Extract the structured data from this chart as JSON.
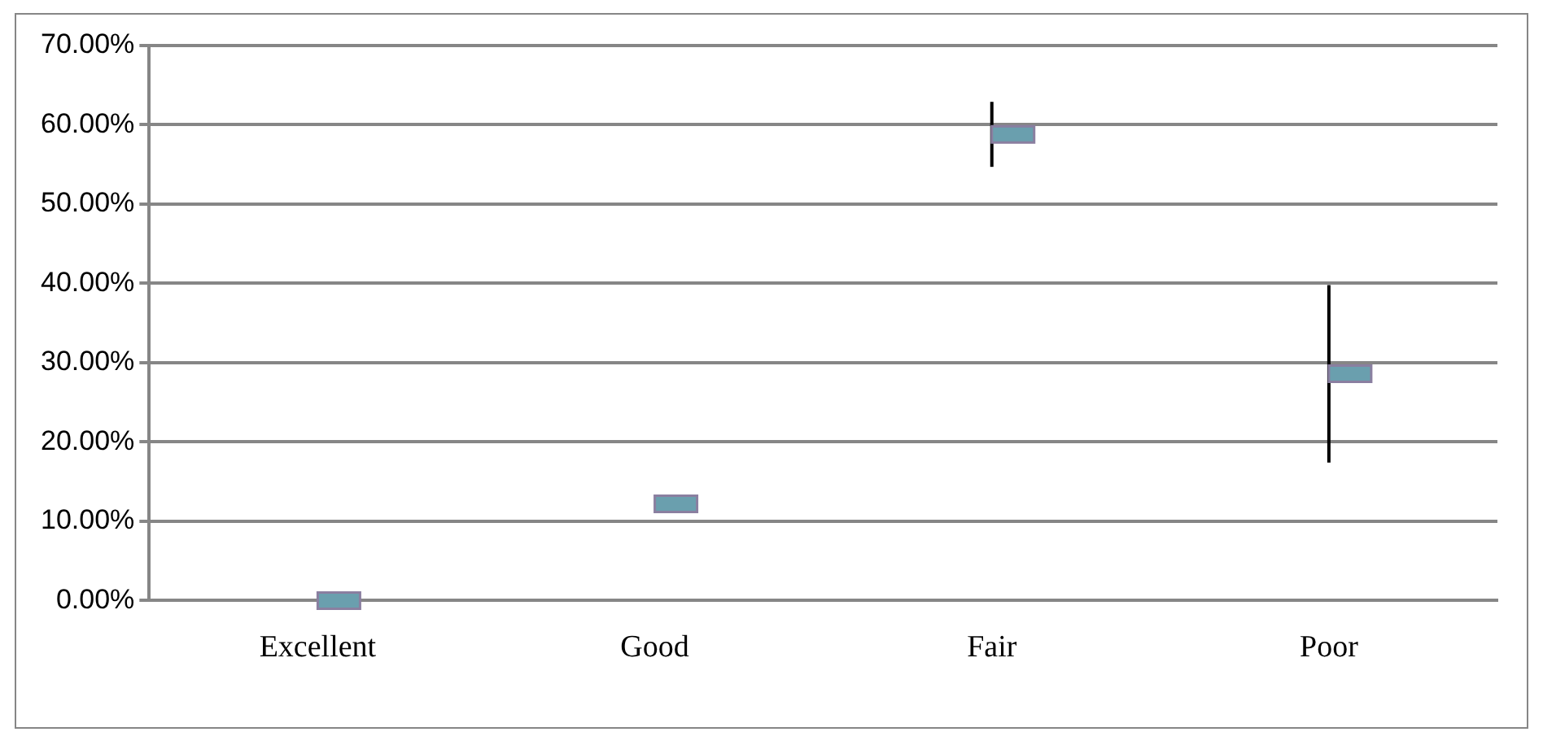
{
  "chart_data": {
    "type": "scatter",
    "categories": [
      "Excellent",
      "Good",
      "Fair",
      "Poor"
    ],
    "values": [
      0,
      12.2,
      58.8,
      28.6
    ],
    "errors": [
      null,
      null,
      4.1,
      11.2
    ],
    "color": "#6a9fae",
    "marker": "square",
    "ylim": [
      0,
      70
    ],
    "yticks": [
      {
        "value": 0,
        "label": "0.00%"
      },
      {
        "value": 10,
        "label": "10.00%"
      },
      {
        "value": 20,
        "label": "20.00%"
      },
      {
        "value": 30,
        "label": "30.00%"
      },
      {
        "value": 40,
        "label": "40.00%"
      },
      {
        "value": 50,
        "label": "50.00%"
      },
      {
        "value": 60,
        "label": "60.00%"
      },
      {
        "value": 70,
        "label": "70.00%"
      }
    ],
    "grid": "y",
    "legend": false
  }
}
